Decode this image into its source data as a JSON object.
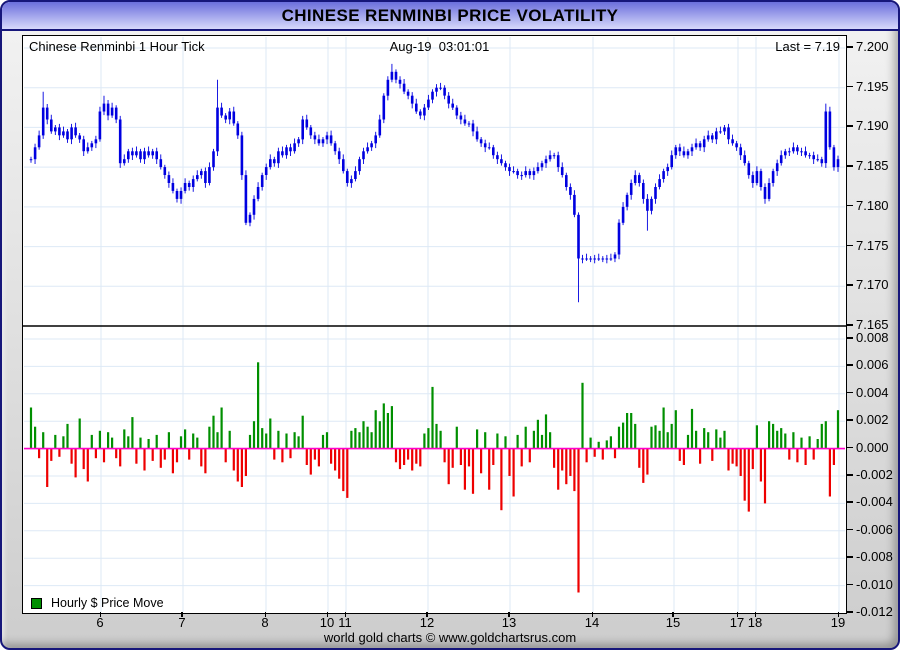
{
  "window_title": "CHINESE RENMINBI PRICE VOLATILITY",
  "top_panel": {
    "label": "Chinese Renminbi 1 Hour Tick",
    "timestamp": "Aug-19  03:01:01",
    "last_label": "Last = 7.19"
  },
  "bottom_panel": {
    "legend_label": "Hourly $ Price Move"
  },
  "footer_text": "world gold charts © www.goldchartsrus.com",
  "colors": {
    "candle": "#0000e0",
    "bar_up": "#008f00",
    "bar_down": "#ee0000",
    "zero_line": "#ff00cc",
    "grid": "#dde9f6",
    "frame_border": "#16167a",
    "title_gradient_top": "#6b6fdc",
    "title_gradient_bottom": "#d7d9fb",
    "axis_text": "#000000"
  },
  "xaxis": {
    "ticks": [
      {
        "label": "6",
        "f": 0.0948
      },
      {
        "label": "7",
        "f": 0.1944
      },
      {
        "label": "8",
        "f": 0.2953
      },
      {
        "label": "10",
        "f": 0.3706
      },
      {
        "label": "11",
        "f": 0.3925
      },
      {
        "label": "12",
        "f": 0.4921
      },
      {
        "label": "13",
        "f": 0.5917
      },
      {
        "label": "14",
        "f": 0.6926
      },
      {
        "label": "15",
        "f": 0.791
      },
      {
        "label": "17",
        "f": 0.8688
      },
      {
        "label": "18",
        "f": 0.8907
      },
      {
        "label": "19",
        "f": 0.9915
      }
    ]
  },
  "chart_data": [
    {
      "type": "candlestick",
      "name": "Chinese Renminbi 1 Hour Tick",
      "last": 7.19,
      "yaxis": {
        "min": 7.165,
        "max": 7.2,
        "ticks": [
          7.2,
          7.195,
          7.19,
          7.185,
          7.18,
          7.175,
          7.17,
          7.165
        ]
      },
      "closes": [
        7.186,
        7.1875,
        7.189,
        7.1925,
        7.191,
        7.1895,
        7.19,
        7.189,
        7.1895,
        7.1885,
        7.19,
        7.189,
        7.1885,
        7.187,
        7.1875,
        7.188,
        7.1885,
        7.192,
        7.193,
        7.1915,
        7.1925,
        7.191,
        7.1855,
        7.186,
        7.187,
        7.1865,
        7.187,
        7.186,
        7.187,
        7.1865,
        7.187,
        7.186,
        7.185,
        7.184,
        7.183,
        7.182,
        7.181,
        7.182,
        7.183,
        7.1825,
        7.1835,
        7.184,
        7.1845,
        7.183,
        7.185,
        7.187,
        7.1925,
        7.1915,
        7.191,
        7.192,
        7.1905,
        7.189,
        7.184,
        7.178,
        7.179,
        7.181,
        7.1825,
        7.184,
        7.185,
        7.186,
        7.1855,
        7.187,
        7.1865,
        7.1875,
        7.187,
        7.188,
        7.1885,
        7.191,
        7.19,
        7.189,
        7.1885,
        7.188,
        7.1885,
        7.189,
        7.188,
        7.187,
        7.186,
        7.1845,
        7.183,
        7.1835,
        7.1845,
        7.186,
        7.187,
        7.1875,
        7.188,
        7.189,
        7.191,
        7.194,
        7.196,
        7.197,
        7.196,
        7.1955,
        7.1945,
        7.194,
        7.193,
        7.192,
        7.1915,
        7.1925,
        7.1935,
        7.1945,
        7.195,
        7.195,
        7.194,
        7.193,
        7.1925,
        7.1915,
        7.191,
        7.1905,
        7.1905,
        7.1895,
        7.1885,
        7.188,
        7.1875,
        7.1875,
        7.1865,
        7.186,
        7.1855,
        7.185,
        7.1845,
        7.1845,
        7.184,
        7.184,
        7.1845,
        7.184,
        7.1845,
        7.185,
        7.1855,
        7.186,
        7.1865,
        7.1865,
        7.185,
        7.184,
        7.1825,
        7.1815,
        7.179,
        7.1735,
        7.1735,
        7.1735,
        7.1735,
        7.1735,
        7.1735,
        7.1735,
        7.1735,
        7.1735,
        7.174,
        7.178,
        7.18,
        7.1815,
        7.183,
        7.184,
        7.183,
        7.181,
        7.1795,
        7.181,
        7.1825,
        7.1835,
        7.1845,
        7.185,
        7.1865,
        7.1875,
        7.187,
        7.1865,
        7.187,
        7.1875,
        7.188,
        7.1875,
        7.1885,
        7.189,
        7.1885,
        7.1895,
        7.1895,
        7.19,
        7.1885,
        7.188,
        7.1875,
        7.1865,
        7.1855,
        7.184,
        7.183,
        7.1845,
        7.1825,
        7.181,
        7.183,
        7.1845,
        7.1855,
        7.1865,
        7.187,
        7.187,
        7.1875,
        7.187,
        7.187,
        7.1865,
        7.1865,
        7.186,
        7.186,
        7.1855,
        7.192,
        7.1875,
        7.185,
        7.186
      ],
      "wick_overrides": {
        "3": {
          "h": 7.1945
        },
        "18": {
          "h": 7.194
        },
        "46": {
          "h": 7.196
        },
        "89": {
          "h": 7.198
        },
        "135": {
          "l": 7.168
        },
        "152": {
          "l": 7.177
        },
        "196": {
          "h": 7.193
        }
      }
    },
    {
      "type": "bar",
      "name": "Hourly $ Price Move",
      "yaxis": {
        "min": -0.012,
        "max": 0.008,
        "ticks": [
          0.008,
          0.006,
          0.004,
          0.002,
          0,
          -0.002,
          -0.004,
          -0.006,
          -0.008,
          -0.01,
          -0.012
        ]
      },
      "values": [
        0.003,
        0.0016,
        -0.0007,
        0.0012,
        -0.0028,
        -0.0009,
        0.001,
        -0.0006,
        0.0009,
        0.0018,
        -0.0011,
        -0.0021,
        0.0022,
        -0.0015,
        -0.0024,
        0.001,
        -0.0007,
        0.0013,
        -0.001,
        0.0012,
        0.0008,
        -0.0007,
        -0.0013,
        0.0014,
        0.0009,
        0.0023,
        -0.0011,
        0.0008,
        -0.0016,
        0.0007,
        -0.0009,
        0.001,
        -0.0014,
        -0.0008,
        0.0012,
        -0.0018,
        -0.001,
        0.0009,
        0.0014,
        -0.0008,
        0.0011,
        0.0008,
        -0.0013,
        -0.0018,
        0.0016,
        0.0024,
        0.0012,
        0.003,
        -0.001,
        0.0013,
        -0.0016,
        -0.0024,
        -0.0028,
        -0.002,
        0.001,
        0.002,
        0.0063,
        0.0015,
        0.0011,
        0.0022,
        -0.0008,
        0.0013,
        -0.001,
        0.0011,
        -0.0007,
        0.0012,
        0.0009,
        0.0024,
        -0.0012,
        -0.0019,
        -0.0008,
        -0.0013,
        0.001,
        0.0012,
        -0.0011,
        -0.0016,
        -0.0022,
        -0.0031,
        -0.0036,
        0.0013,
        0.0015,
        0.0012,
        0.002,
        0.0016,
        0.0012,
        0.0028,
        0.002,
        0.0033,
        0.0026,
        0.0031,
        -0.001,
        -0.0015,
        -0.0012,
        -0.0008,
        -0.0016,
        -0.0011,
        -0.0013,
        0.0011,
        0.0015,
        0.0045,
        0.0018,
        0.0013,
        -0.001,
        -0.0026,
        -0.0014,
        0.0016,
        -0.0012,
        -0.003,
        -0.0013,
        -0.0033,
        0.0014,
        -0.0018,
        0.0012,
        -0.003,
        -0.0012,
        0.0011,
        -0.0045,
        0.0009,
        -0.002,
        -0.0035,
        0.001,
        -0.0013,
        0.0016,
        -0.001,
        0.0013,
        0.0021,
        0.001,
        0.0025,
        0.0012,
        -0.0014,
        -0.003,
        -0.0016,
        -0.0026,
        -0.002,
        -0.0031,
        -0.0105,
        0.0048,
        -0.001,
        0.0008,
        -0.0006,
        0.0005,
        -0.0008,
        0.0006,
        0.0009,
        -0.0007,
        0.0016,
        0.0019,
        0.0026,
        0.0026,
        0.0018,
        -0.0014,
        -0.0025,
        -0.0019,
        0.0016,
        0.0017,
        0.0013,
        0.003,
        0.0012,
        0.0018,
        0.0028,
        -0.0009,
        -0.0012,
        0.001,
        0.0029,
        0.0013,
        -0.0011,
        0.0015,
        0.0012,
        -0.0009,
        0.0014,
        0.0008,
        0.0013,
        -0.0016,
        -0.0011,
        -0.0013,
        -0.002,
        -0.0038,
        -0.0046,
        -0.0015,
        0.0017,
        -0.0024,
        -0.004,
        0.002,
        0.0018,
        0.0013,
        0.0015,
        0.0011,
        -0.0008,
        0.0012,
        -0.001,
        0.0008,
        -0.0012,
        0.0009,
        -0.0008,
        0.0007,
        0.0018,
        0.002,
        -0.0035,
        -0.0012,
        0.0028
      ]
    }
  ]
}
